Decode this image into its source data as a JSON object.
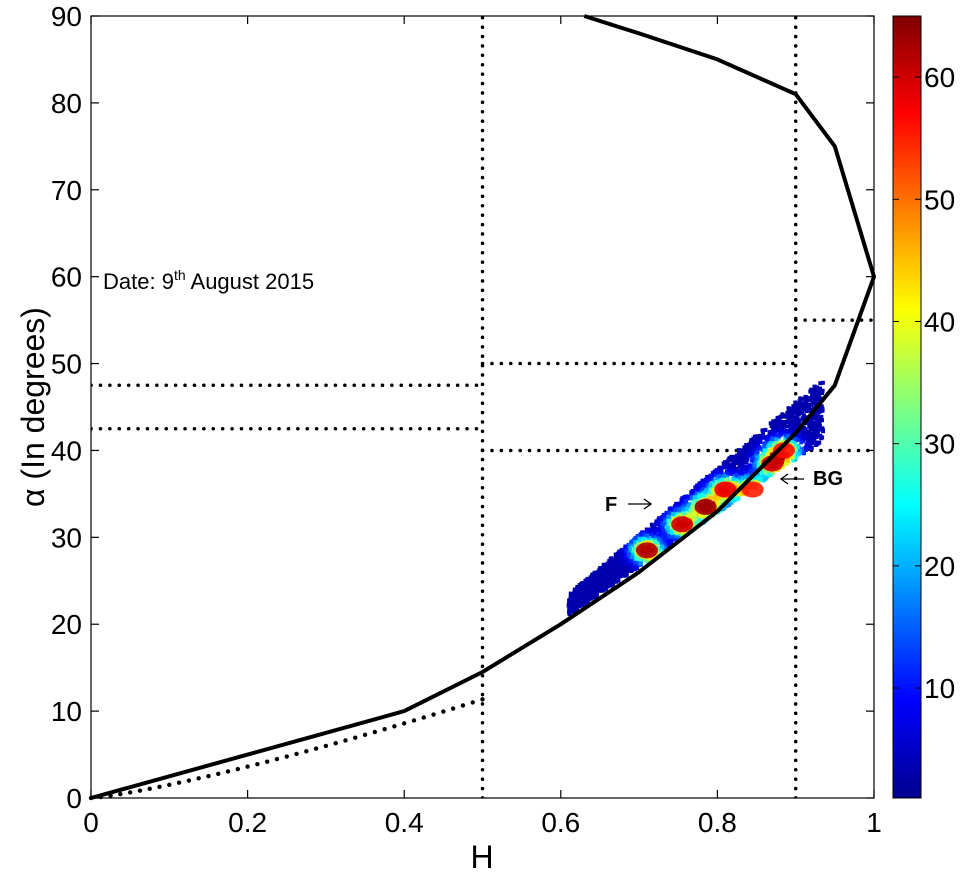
{
  "chart_data": {
    "type": "scatter",
    "title": "",
    "xlabel": "H",
    "ylabel": "α (In degrees)",
    "xlim": [
      0,
      1
    ],
    "ylim": [
      0,
      90
    ],
    "xticks": [
      "0",
      "0.2",
      "0.4",
      "0.6",
      "0.8",
      "1"
    ],
    "xtick_values": [
      0,
      0.2,
      0.4,
      0.6,
      0.8,
      1.0
    ],
    "yticks": [
      "0",
      "10",
      "20",
      "30",
      "40",
      "50",
      "60",
      "70",
      "80",
      "90"
    ],
    "ytick_values": [
      0,
      10,
      20,
      30,
      40,
      50,
      60,
      70,
      80,
      90
    ],
    "grid": false,
    "annotation_date": {
      "prefix": "Date: 9",
      "sup": "th",
      "suffix": " August 2015"
    },
    "label_F": "F",
    "label_BG": "BG",
    "colorbar": {
      "min": 1,
      "max": 65,
      "ticks": [
        "10",
        "20",
        "30",
        "40",
        "50",
        "60"
      ],
      "tick_values": [
        10,
        20,
        30,
        40,
        50,
        60
      ],
      "colormap": "jet"
    },
    "feasible_boundary": {
      "name": "",
      "description_points": [
        [
          0,
          0
        ],
        [
          0.2,
          5
        ],
        [
          0.4,
          10
        ],
        [
          0.5,
          14.5
        ],
        [
          0.6,
          20
        ],
        [
          0.7,
          26
        ],
        [
          0.8,
          33
        ],
        [
          0.9,
          42
        ],
        [
          0.95,
          47.5
        ],
        [
          1.0,
          60
        ],
        [
          0.95,
          75
        ],
        [
          0.9,
          81
        ],
        [
          0.8,
          85
        ],
        [
          0.7,
          88
        ],
        [
          0.63,
          90
        ]
      ]
    },
    "zone_boundaries": [
      {
        "type": "vline",
        "x": 0.5,
        "y_range": [
          0,
          90
        ]
      },
      {
        "type": "vline",
        "x": 0.9,
        "y_range": [
          0,
          90
        ]
      },
      {
        "type": "hline",
        "y": 47.5,
        "x_range": [
          0,
          0.5
        ]
      },
      {
        "type": "hline",
        "y": 42.5,
        "x_range": [
          0,
          0.5
        ]
      },
      {
        "type": "hline",
        "y": 50,
        "x_range": [
          0.5,
          0.9
        ]
      },
      {
        "type": "hline",
        "y": 40,
        "x_range": [
          0.5,
          1.0
        ]
      },
      {
        "type": "hline",
        "y": 55,
        "x_range": [
          0.9,
          1.0
        ]
      }
    ],
    "density_clusters": [
      {
        "h": 0.71,
        "alpha": 28.5,
        "density": 62
      },
      {
        "h": 0.755,
        "alpha": 31.5,
        "density": 60
      },
      {
        "h": 0.785,
        "alpha": 33.5,
        "density": 63
      },
      {
        "h": 0.81,
        "alpha": 35.5,
        "density": 58
      },
      {
        "h": 0.845,
        "alpha": 35.5,
        "density": 55
      },
      {
        "h": 0.87,
        "alpha": 38.5,
        "density": 60
      },
      {
        "h": 0.885,
        "alpha": 40.0,
        "density": 56
      }
    ],
    "scatter_extent": {
      "h_range": [
        0.61,
        0.935
      ],
      "alpha_range": [
        22,
        48.5
      ]
    }
  }
}
